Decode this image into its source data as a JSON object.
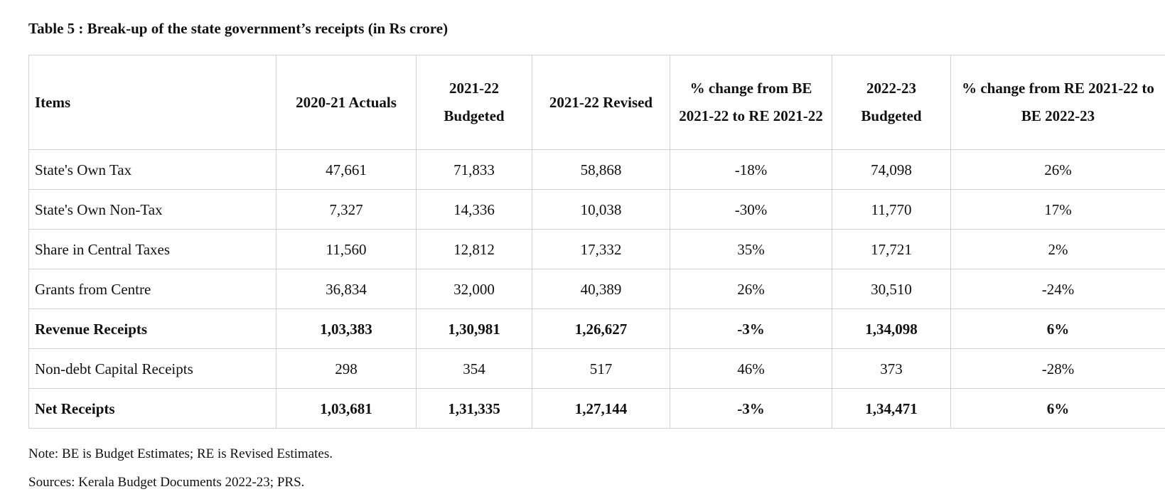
{
  "caption": "Table  5 : Break-up of the state government’s receipts (in Rs crore)",
  "headers": [
    "Items",
    "2020-21 Actuals",
    "2021-22 Budgeted",
    "2021-22 Revised",
    "% change from BE 2021-22 to RE 2021-22",
    "2022-23 Budgeted",
    "% change from RE 2021-22 to BE 2022-23"
  ],
  "rows": [
    {
      "bold": false,
      "cells": [
        "State's Own Tax",
        "47,661",
        "71,833",
        "58,868",
        "-18%",
        "74,098",
        "26%"
      ]
    },
    {
      "bold": false,
      "cells": [
        "State's Own Non-Tax",
        "7,327",
        "14,336",
        "10,038",
        "-30%",
        "11,770",
        "17%"
      ]
    },
    {
      "bold": false,
      "cells": [
        "Share in Central Taxes",
        "11,560",
        "12,812",
        "17,332",
        "35%",
        "17,721",
        "2%"
      ]
    },
    {
      "bold": false,
      "cells": [
        "Grants from Centre",
        "36,834",
        "32,000",
        "40,389",
        "26%",
        "30,510",
        "-24%"
      ]
    },
    {
      "bold": true,
      "cells": [
        "Revenue Receipts",
        "1,03,383",
        "1,30,981",
        "1,26,627",
        "-3%",
        "1,34,098",
        "6%"
      ]
    },
    {
      "bold": false,
      "cells": [
        "Non-debt Capital Receipts",
        "298",
        "354",
        "517",
        "46%",
        "373",
        "-28%"
      ]
    },
    {
      "bold": true,
      "cells": [
        "Net Receipts",
        "1,03,681",
        "1,31,335",
        "1,27,144",
        "-3%",
        "1,34,471",
        "6%"
      ]
    }
  ],
  "note": "Note: BE is Budget Estimates; RE is Revised Estimates.",
  "sources": "Sources: Kerala Budget Documents 2022-23; PRS."
}
